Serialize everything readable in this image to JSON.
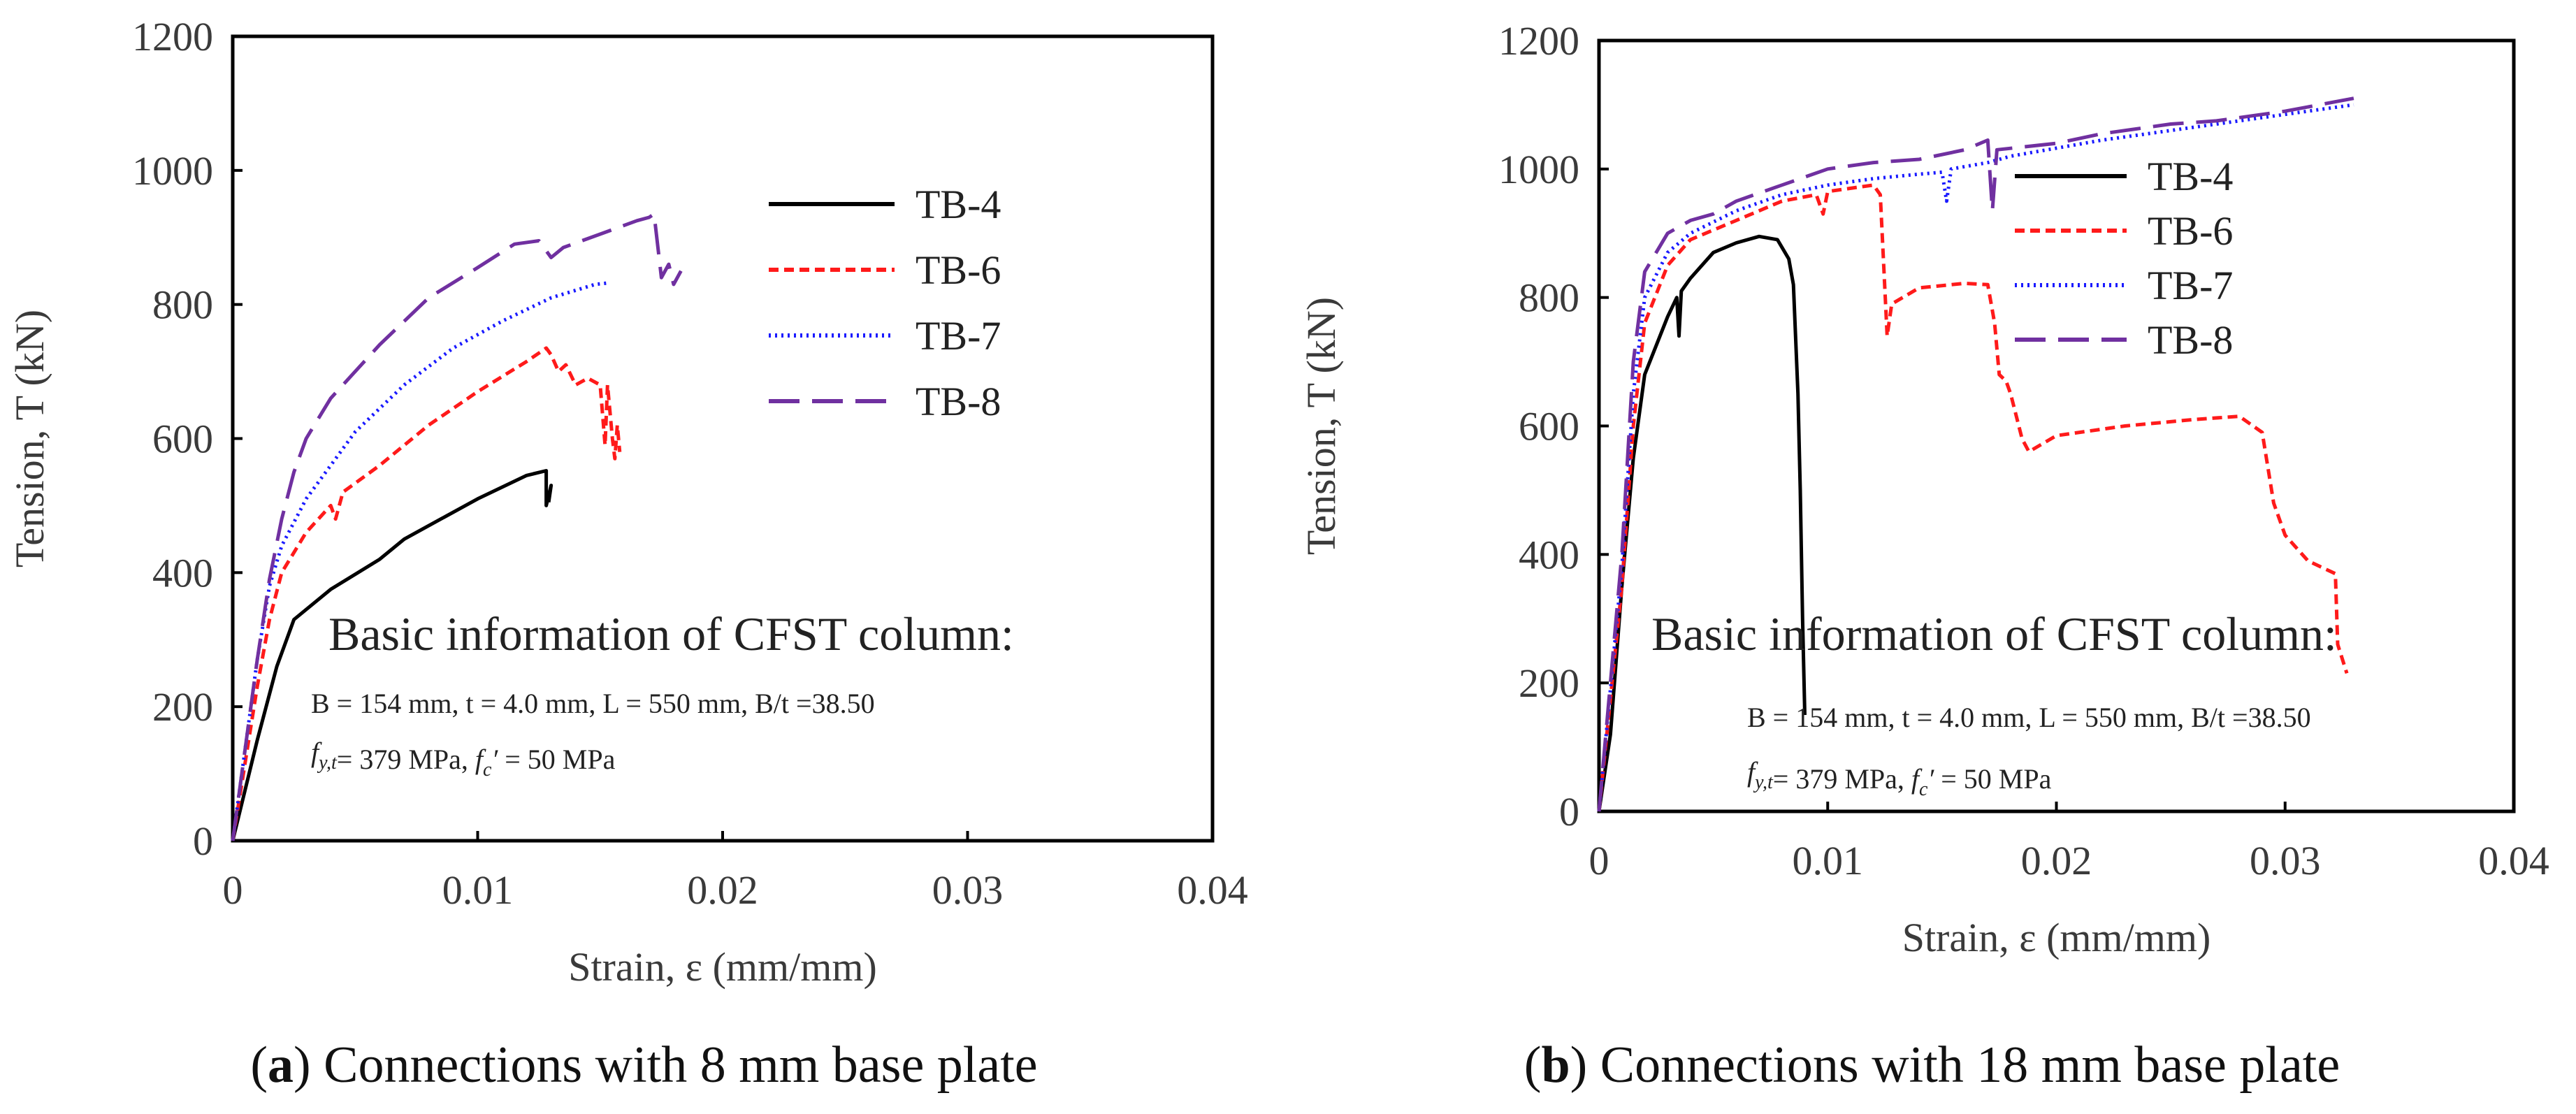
{
  "chart_data": [
    {
      "type": "line",
      "caption_letter": "a",
      "caption_rest": "Connections with 8 mm base plate",
      "xlabel": "Strain, ε (mm/mm)",
      "ylabel": "Tension, T (kN)",
      "xlim": [
        0,
        0.04
      ],
      "ylim": [
        0,
        1200
      ],
      "xticks": [
        "0",
        "0.01",
        "0.02",
        "0.03",
        "0.04"
      ],
      "yticks": [
        "0",
        "200",
        "400",
        "600",
        "800",
        "1000",
        "1200"
      ],
      "grid": false,
      "legend_position": "top-right",
      "note_title": "Basic information of CFST column:",
      "note_line1": "B = 154 mm, t = 4.0 mm, L = 550 mm, B/t =38.50",
      "note_line2": "f_y,t= 379 MPa, f_c′ = 50 MPa",
      "series": [
        {
          "name": "TB-4",
          "color": "#000000",
          "dash": "solid",
          "points": [
            [
              0,
              0
            ],
            [
              0.001,
              150
            ],
            [
              0.0018,
              260
            ],
            [
              0.0025,
              330
            ],
            [
              0.004,
              375
            ],
            [
              0.006,
              420
            ],
            [
              0.007,
              450
            ],
            [
              0.0085,
              480
            ],
            [
              0.01,
              510
            ],
            [
              0.012,
              545
            ],
            [
              0.0128,
              552
            ],
            [
              0.0128,
              500
            ],
            [
              0.013,
              530
            ],
            [
              0.0129,
              505
            ]
          ]
        },
        {
          "name": "TB-6",
          "color": "#ff1a1a",
          "dash": "dashed",
          "points": [
            [
              0,
              0
            ],
            [
              0.001,
              230
            ],
            [
              0.0015,
              330
            ],
            [
              0.002,
              400
            ],
            [
              0.003,
              460
            ],
            [
              0.004,
              500
            ],
            [
              0.0042,
              480
            ],
            [
              0.0045,
              520
            ],
            [
              0.006,
              560
            ],
            [
              0.008,
              620
            ],
            [
              0.01,
              670
            ],
            [
              0.012,
              715
            ],
            [
              0.0128,
              735
            ],
            [
              0.013,
              725
            ],
            [
              0.0133,
              700
            ],
            [
              0.0136,
              710
            ],
            [
              0.014,
              680
            ],
            [
              0.0145,
              690
            ],
            [
              0.015,
              680
            ],
            [
              0.0152,
              590
            ],
            [
              0.0153,
              680
            ],
            [
              0.0155,
              600
            ],
            [
              0.0156,
              570
            ],
            [
              0.0157,
              620
            ],
            [
              0.0158,
              580
            ]
          ]
        },
        {
          "name": "TB-7",
          "color": "#1a1aff",
          "dash": "dotted",
          "points": [
            [
              0,
              0
            ],
            [
              0.001,
              270
            ],
            [
              0.0015,
              380
            ],
            [
              0.002,
              440
            ],
            [
              0.003,
              510
            ],
            [
              0.004,
              560
            ],
            [
              0.005,
              610
            ],
            [
              0.007,
              680
            ],
            [
              0.009,
              735
            ],
            [
              0.011,
              775
            ],
            [
              0.013,
              810
            ],
            [
              0.0148,
              830
            ],
            [
              0.0153,
              832
            ]
          ]
        },
        {
          "name": "TB-8",
          "color": "#7030a0",
          "dash": "longdash",
          "points": [
            [
              0,
              0
            ],
            [
              0.001,
              270
            ],
            [
              0.0015,
              390
            ],
            [
              0.002,
              480
            ],
            [
              0.0025,
              550
            ],
            [
              0.003,
              600
            ],
            [
              0.004,
              660
            ],
            [
              0.006,
              740
            ],
            [
              0.008,
              810
            ],
            [
              0.01,
              855
            ],
            [
              0.0115,
              890
            ],
            [
              0.0125,
              895
            ],
            [
              0.013,
              870
            ],
            [
              0.0135,
              885
            ],
            [
              0.015,
              905
            ],
            [
              0.0165,
              925
            ],
            [
              0.017,
              930
            ],
            [
              0.0172,
              935
            ],
            [
              0.0175,
              840
            ],
            [
              0.0178,
              860
            ],
            [
              0.018,
              830
            ],
            [
              0.0183,
              850
            ]
          ]
        }
      ]
    },
    {
      "type": "line",
      "caption_letter": "b",
      "caption_rest": "Connections with 18 mm base plate",
      "xlabel": "Strain, ε (mm/mm)",
      "ylabel": "Tension, T (kN)",
      "xlim": [
        0,
        0.04
      ],
      "ylim": [
        0,
        1200
      ],
      "xticks": [
        "0",
        "0.01",
        "0.02",
        "0.03",
        "0.04"
      ],
      "yticks": [
        "0",
        "200",
        "400",
        "600",
        "800",
        "1000",
        "1200"
      ],
      "grid": false,
      "legend_position": "top-right",
      "note_title": "Basic information of CFST column:",
      "note_line1": "B = 154 mm, t = 4.0 mm, L = 550 mm, B/t =38.50",
      "note_line2": "f_y,t= 379 MPa, f_c′ = 50 MPa",
      "series": [
        {
          "name": "TB-4",
          "color": "#000000",
          "dash": "solid",
          "points": [
            [
              0,
              0
            ],
            [
              0.0005,
              120
            ],
            [
              0.001,
              350
            ],
            [
              0.0015,
              550
            ],
            [
              0.002,
              680
            ],
            [
              0.003,
              770
            ],
            [
              0.0034,
              800
            ],
            [
              0.0035,
              740
            ],
            [
              0.0036,
              810
            ],
            [
              0.004,
              830
            ],
            [
              0.005,
              870
            ],
            [
              0.006,
              885
            ],
            [
              0.007,
              895
            ],
            [
              0.0078,
              890
            ],
            [
              0.0083,
              860
            ],
            [
              0.0085,
              820
            ],
            [
              0.0087,
              650
            ],
            [
              0.0088,
              500
            ],
            [
              0.0089,
              300
            ],
            [
              0.009,
              150
            ]
          ]
        },
        {
          "name": "TB-6",
          "color": "#ff1a1a",
          "dash": "dashed",
          "points": [
            [
              0,
              0
            ],
            [
              0.001,
              350
            ],
            [
              0.0015,
              600
            ],
            [
              0.002,
              760
            ],
            [
              0.003,
              850
            ],
            [
              0.004,
              890
            ],
            [
              0.006,
              920
            ],
            [
              0.008,
              950
            ],
            [
              0.0095,
              960
            ],
            [
              0.0098,
              930
            ],
            [
              0.01,
              965
            ],
            [
              0.011,
              970
            ],
            [
              0.012,
              975
            ],
            [
              0.0123,
              960
            ],
            [
              0.0126,
              740
            ],
            [
              0.0128,
              790
            ],
            [
              0.014,
              815
            ],
            [
              0.016,
              822
            ],
            [
              0.017,
              820
            ],
            [
              0.0173,
              760
            ],
            [
              0.0175,
              680
            ],
            [
              0.0178,
              670
            ],
            [
              0.018,
              650
            ],
            [
              0.0185,
              580
            ],
            [
              0.0188,
              560
            ],
            [
              0.02,
              585
            ],
            [
              0.023,
              600
            ],
            [
              0.026,
              610
            ],
            [
              0.028,
              615
            ],
            [
              0.029,
              590
            ],
            [
              0.0295,
              480
            ],
            [
              0.03,
              430
            ],
            [
              0.031,
              390
            ],
            [
              0.0322,
              370
            ],
            [
              0.0323,
              260
            ],
            [
              0.0327,
              215
            ]
          ]
        },
        {
          "name": "TB-7",
          "color": "#1a1aff",
          "dash": "dotted",
          "points": [
            [
              0,
              0
            ],
            [
              0.001,
              380
            ],
            [
              0.0015,
              650
            ],
            [
              0.002,
              800
            ],
            [
              0.003,
              870
            ],
            [
              0.004,
              900
            ],
            [
              0.006,
              935
            ],
            [
              0.008,
              960
            ],
            [
              0.01,
              975
            ],
            [
              0.012,
              985
            ],
            [
              0.014,
              992
            ],
            [
              0.015,
              995
            ],
            [
              0.0152,
              950
            ],
            [
              0.0154,
              1000
            ],
            [
              0.017,
              1010
            ],
            [
              0.018,
              1020
            ],
            [
              0.022,
              1045
            ],
            [
              0.026,
              1065
            ],
            [
              0.03,
              1085
            ],
            [
              0.033,
              1100
            ]
          ]
        },
        {
          "name": "TB-8",
          "color": "#7030a0",
          "dash": "longdash",
          "points": [
            [
              0,
              0
            ],
            [
              0.001,
              400
            ],
            [
              0.0015,
              700
            ],
            [
              0.002,
              840
            ],
            [
              0.003,
              900
            ],
            [
              0.004,
              920
            ],
            [
              0.005,
              930
            ],
            [
              0.006,
              950
            ],
            [
              0.008,
              975
            ],
            [
              0.01,
              1000
            ],
            [
              0.012,
              1010
            ],
            [
              0.014,
              1015
            ],
            [
              0.016,
              1030
            ],
            [
              0.017,
              1045
            ],
            [
              0.0172,
              935
            ],
            [
              0.0174,
              1030
            ],
            [
              0.02,
              1040
            ],
            [
              0.022,
              1055
            ],
            [
              0.025,
              1070
            ],
            [
              0.027,
              1075
            ],
            [
              0.03,
              1090
            ],
            [
              0.033,
              1110
            ]
          ]
        }
      ]
    }
  ]
}
